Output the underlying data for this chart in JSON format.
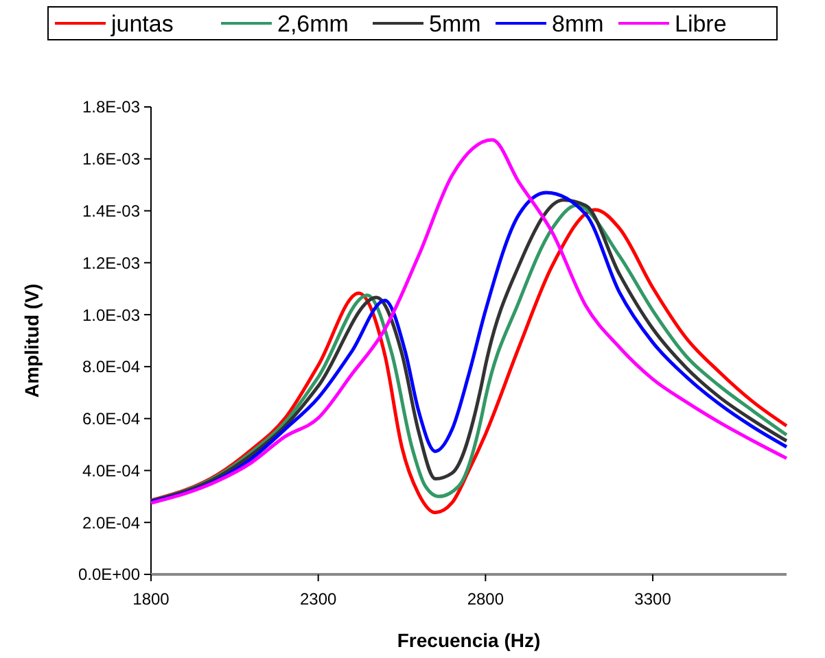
{
  "chart_data": {
    "type": "line",
    "xlabel": "Frecuencia (Hz)",
    "ylabel": "Amplitud (V)",
    "xlim": [
      1800,
      3700
    ],
    "xticks": [
      1800,
      2300,
      2800,
      3300
    ],
    "ylim": [
      0,
      0.0018
    ],
    "yticks": [
      {
        "value": 0,
        "label": "0.0E+00"
      },
      {
        "value": 0.0002,
        "label": "2.0E-04"
      },
      {
        "value": 0.0004,
        "label": "4.0E-04"
      },
      {
        "value": 0.0006,
        "label": "6.0E-04"
      },
      {
        "value": 0.0008,
        "label": "8.0E-04"
      },
      {
        "value": 0.001,
        "label": "1.0E-03"
      },
      {
        "value": 0.0012,
        "label": "1.2E-03"
      },
      {
        "value": 0.0014,
        "label": "1.4E-03"
      },
      {
        "value": 0.0016,
        "label": "1.6E-03"
      },
      {
        "value": 0.0018,
        "label": "1.8E-03"
      }
    ],
    "grid": false,
    "legend": "top",
    "marker": "none",
    "line_style": "solid",
    "series": [
      {
        "name": "juntas",
        "color": "#ff0000",
        "x": [
          1800,
          2000,
          2100,
          2200,
          2300,
          2421,
          2500,
          2550,
          2600,
          2650,
          2700,
          2750,
          2800,
          2900,
          3000,
          3128,
          3200,
          3300,
          3400,
          3500,
          3600,
          3700
        ],
        "values": [
          0.000285,
          0.000385,
          0.00048,
          0.0006,
          0.000805,
          0.001083,
          0.00084,
          0.00049,
          0.00031,
          0.000238,
          0.000276,
          0.0004,
          0.00054,
          0.000875,
          0.00119,
          0.001404,
          0.001333,
          0.001104,
          0.00091,
          0.000778,
          0.000664,
          0.000572
        ]
      },
      {
        "name": "2,6mm",
        "color": "#339966",
        "x": [
          1800,
          2000,
          2100,
          2200,
          2300,
          2447,
          2520,
          2580,
          2620,
          2660,
          2720,
          2786,
          2800,
          2900,
          3000,
          3073,
          3200,
          3300,
          3400,
          3500,
          3600,
          3700
        ],
        "values": [
          0.000283,
          0.00038,
          0.00047,
          0.000585,
          0.00076,
          0.001075,
          0.00085,
          0.00049,
          0.00034,
          0.0003,
          0.00034,
          0.000593,
          0.00068,
          0.00105,
          0.001333,
          0.001421,
          0.001227,
          0.001016,
          0.00084,
          0.000725,
          0.000629,
          0.000537
        ]
      },
      {
        "name": "5mm",
        "color": "#333333",
        "x": [
          1800,
          2000,
          2100,
          2200,
          2300,
          2474,
          2550,
          2600,
          2650,
          2700,
          2786,
          2800,
          2900,
          3032,
          3100,
          3200,
          3300,
          3400,
          3500,
          3600,
          3700
        ],
        "values": [
          0.000282,
          0.000375,
          0.00046,
          0.00057,
          0.000725,
          0.001066,
          0.00085,
          0.00055,
          0.000368,
          0.00039,
          0.000717,
          0.000805,
          0.00119,
          0.001442,
          0.00142,
          0.001157,
          0.000946,
          0.000796,
          0.000682,
          0.000593,
          0.000514
        ]
      },
      {
        "name": "8mm",
        "color": "#0000ff",
        "x": [
          1800,
          2000,
          2100,
          2200,
          2300,
          2400,
          2499,
          2560,
          2600,
          2650,
          2700,
          2750,
          2800,
          2900,
          2982,
          3100,
          3200,
          3300,
          3400,
          3500,
          3600,
          3700
        ],
        "values": [
          0.00028,
          0.000365,
          0.000445,
          0.000558,
          0.00068,
          0.000858,
          0.001055,
          0.000858,
          0.000629,
          0.000474,
          0.000558,
          0.00077,
          0.001016,
          0.001386,
          0.00147,
          0.001386,
          0.001087,
          0.000893,
          0.000761,
          0.000655,
          0.000567,
          0.000491
        ]
      },
      {
        "name": "Libre",
        "color": "#ff00ff",
        "x": [
          1800,
          2000,
          2100,
          2200,
          2300,
          2400,
          2500,
          2600,
          2700,
          2820,
          2900,
          3000,
          3100,
          3200,
          3300,
          3400,
          3500,
          3600,
          3700
        ],
        "values": [
          0.000275,
          0.00036,
          0.00043,
          0.00053,
          0.000602,
          0.00077,
          0.000946,
          0.001227,
          0.001536,
          0.001673,
          0.00151,
          0.001316,
          0.001034,
          0.000875,
          0.000752,
          0.000664,
          0.000585,
          0.000514,
          0.000447
        ]
      }
    ]
  }
}
